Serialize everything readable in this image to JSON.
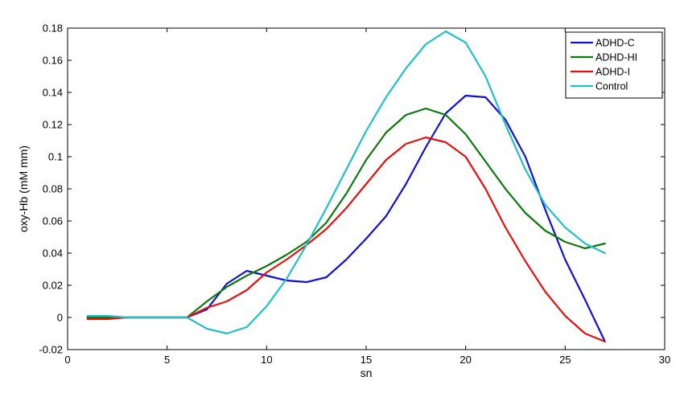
{
  "chart_data": {
    "type": "line",
    "title": "",
    "xlabel": "sn",
    "ylabel": "oxy-Hb (mM mm)",
    "xlim": [
      0,
      30
    ],
    "ylim": [
      -0.02,
      0.18
    ],
    "xticks": [
      0,
      5,
      10,
      15,
      20,
      25,
      30
    ],
    "xtick_labels": [
      "0",
      "5",
      "10",
      "15",
      "20",
      "25",
      "30"
    ],
    "yticks": [
      -0.02,
      0,
      0.02,
      0.04,
      0.06,
      0.08,
      0.1,
      0.12,
      0.14,
      0.16,
      0.18
    ],
    "ytick_labels": [
      "-0.02",
      "0",
      "0.02",
      "0.04",
      "0.06",
      "0.08",
      "0.1",
      "0.12",
      "0.14",
      "0.16",
      "0.18"
    ],
    "grid": false,
    "legend_position": "top-right",
    "x": [
      1,
      2,
      3,
      4,
      5,
      6,
      7,
      8,
      9,
      10,
      11,
      12,
      13,
      14,
      15,
      16,
      17,
      18,
      19,
      20,
      21,
      22,
      23,
      24,
      25,
      26,
      27
    ],
    "series": [
      {
        "name": "ADHD-C",
        "color": "#1010d8",
        "values": [
          0,
          0,
          0,
          0,
          0,
          0,
          0.005,
          0.021,
          0.029,
          0.026,
          0.023,
          0.022,
          0.025,
          0.036,
          0.049,
          0.063,
          0.083,
          0.106,
          0.127,
          0.138,
          0.137,
          0.123,
          0.1,
          0.067,
          0.036,
          0.011,
          -0.015
        ]
      },
      {
        "name": "ADHD-HI",
        "color": "#0a7a0a",
        "values": [
          0,
          0,
          0,
          0,
          0,
          0,
          0.01,
          0.019,
          0.026,
          0.032,
          0.039,
          0.047,
          0.059,
          0.077,
          0.098,
          0.115,
          0.126,
          0.13,
          0.126,
          0.114,
          0.097,
          0.08,
          0.065,
          0.054,
          0.047,
          0.043,
          0.046
        ]
      },
      {
        "name": "ADHD-I",
        "color": "#e81010",
        "values": [
          -0.001,
          -0.001,
          0,
          0,
          0,
          0,
          0.006,
          0.01,
          0.017,
          0.028,
          0.036,
          0.045,
          0.055,
          0.068,
          0.083,
          0.098,
          0.108,
          0.112,
          0.109,
          0.1,
          0.08,
          0.056,
          0.035,
          0.016,
          0.001,
          -0.01,
          -0.015
        ]
      },
      {
        "name": "Control",
        "color": "#20c0c8",
        "values": [
          0.001,
          0.001,
          0,
          0,
          0,
          0,
          -0.007,
          -0.01,
          -0.006,
          0.007,
          0.024,
          0.045,
          0.068,
          0.092,
          0.116,
          0.137,
          0.155,
          0.17,
          0.178,
          0.171,
          0.15,
          0.12,
          0.092,
          0.07,
          0.056,
          0.046,
          0.04
        ]
      }
    ]
  }
}
